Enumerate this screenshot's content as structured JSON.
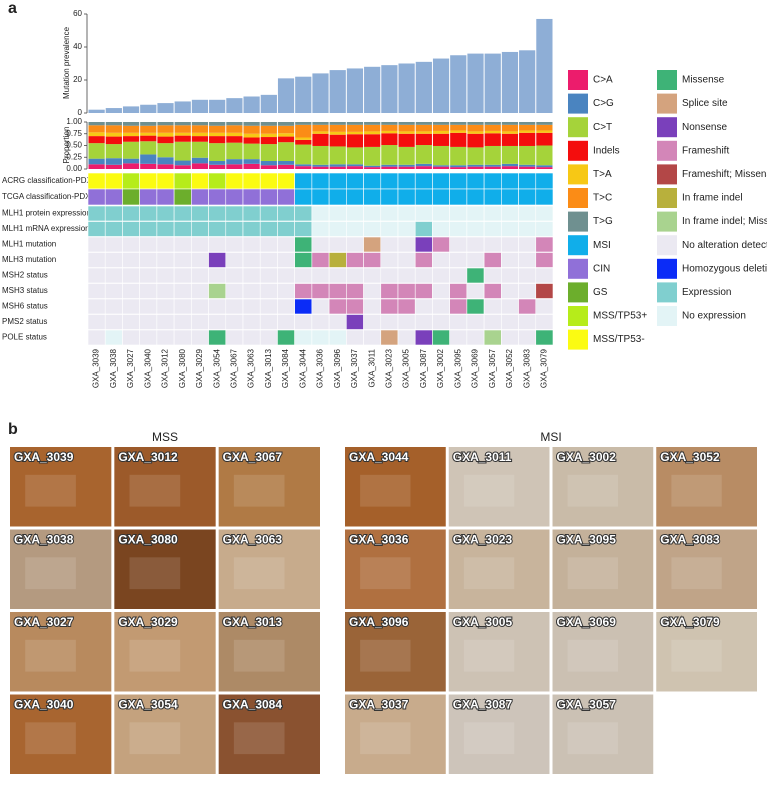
{
  "panel_a": {
    "label": "a"
  },
  "chart_data": [
    {
      "type": "bar",
      "ylabel": "Mutation prevalence",
      "color": "#8eaed6",
      "categories": [
        "GXA_3039",
        "GXA_3038",
        "GXA_3027",
        "GXA_3040",
        "GXA_3012",
        "GXA_3080",
        "GXA_3029",
        "GXA_3054",
        "GXA_3067",
        "GXA_3063",
        "GXA_3013",
        "GXA_3084",
        "GXA_3044",
        "GXA_3036",
        "GXA_3096",
        "GXA_3037",
        "GXA_3011",
        "GXA_3023",
        "GXA_3005",
        "GXA_3087",
        "GXA_3002",
        "GXA_3095",
        "GXA_3069",
        "GXA_3057",
        "GXA_3052",
        "GXA_3083",
        "GXA_3079"
      ],
      "values": [
        2,
        3,
        4,
        5,
        6,
        7,
        8,
        8,
        9,
        10,
        11,
        21,
        22,
        24,
        26,
        27,
        28,
        29,
        30,
        31,
        33,
        35,
        36,
        36,
        37,
        38,
        57
      ],
      "ylim": [
        0,
        60
      ],
      "yticks": [
        0,
        20,
        40,
        60
      ]
    },
    {
      "type": "stacked_bar",
      "ylabel": "Proportion",
      "ylim": [
        0,
        1
      ],
      "yticks": [
        {
          "value": 0,
          "label": "0.00"
        },
        {
          "value": 0.25,
          "label": "0.25"
        },
        {
          "value": 0.5,
          "label": "0.50"
        },
        {
          "value": 0.75,
          "label": "0.75"
        },
        {
          "value": 1,
          "label": "1.00"
        }
      ],
      "series": [
        {
          "name": "C>A",
          "color": "#ec1c6c",
          "values": [
            0.1,
            0.09,
            0.12,
            0.11,
            0.1,
            0.08,
            0.12,
            0.09,
            0.1,
            0.11,
            0.08,
            0.09,
            0.06,
            0.05,
            0.05,
            0.06,
            0.04,
            0.05,
            0.05,
            0.06,
            0.05,
            0.04,
            0.05,
            0.05,
            0.06,
            0.05,
            0.04
          ]
        },
        {
          "name": "C>G",
          "color": "#4a84c0",
          "values": [
            0.12,
            0.14,
            0.1,
            0.2,
            0.15,
            0.1,
            0.12,
            0.08,
            0.11,
            0.1,
            0.09,
            0.08,
            0.04,
            0.04,
            0.05,
            0.04,
            0.03,
            0.04,
            0.04,
            0.05,
            0.03,
            0.04,
            0.04,
            0.04,
            0.05,
            0.04,
            0.04
          ]
        },
        {
          "name": "C>T",
          "color": "#a5d33a",
          "values": [
            0.33,
            0.3,
            0.36,
            0.28,
            0.3,
            0.4,
            0.34,
            0.38,
            0.35,
            0.33,
            0.36,
            0.4,
            0.42,
            0.4,
            0.38,
            0.36,
            0.4,
            0.42,
            0.38,
            0.4,
            0.41,
            0.39,
            0.37,
            0.4,
            0.38,
            0.4,
            0.42
          ]
        },
        {
          "name": "Indels",
          "color": "#f40d0d",
          "values": [
            0.15,
            0.16,
            0.12,
            0.12,
            0.14,
            0.13,
            0.12,
            0.15,
            0.14,
            0.13,
            0.15,
            0.12,
            0.1,
            0.26,
            0.25,
            0.28,
            0.27,
            0.25,
            0.28,
            0.24,
            0.26,
            0.3,
            0.29,
            0.27,
            0.26,
            0.28,
            0.27
          ]
        },
        {
          "name": "T>A",
          "color": "#f7c815",
          "values": [
            0.08,
            0.08,
            0.07,
            0.06,
            0.08,
            0.06,
            0.07,
            0.07,
            0.07,
            0.08,
            0.07,
            0.07,
            0.05,
            0.05,
            0.06,
            0.05,
            0.06,
            0.05,
            0.05,
            0.05,
            0.06,
            0.05,
            0.05,
            0.05,
            0.05,
            0.05,
            0.05
          ]
        },
        {
          "name": "T>C",
          "color": "#fb8c16",
          "values": [
            0.15,
            0.16,
            0.15,
            0.15,
            0.16,
            0.16,
            0.16,
            0.15,
            0.16,
            0.17,
            0.17,
            0.16,
            0.27,
            0.14,
            0.15,
            0.15,
            0.14,
            0.13,
            0.14,
            0.14,
            0.13,
            0.12,
            0.14,
            0.13,
            0.14,
            0.12,
            0.12
          ]
        },
        {
          "name": "T>G",
          "color": "#6f9090",
          "values": [
            0.07,
            0.07,
            0.08,
            0.08,
            0.07,
            0.07,
            0.07,
            0.08,
            0.07,
            0.08,
            0.08,
            0.08,
            0.06,
            0.06,
            0.06,
            0.06,
            0.06,
            0.06,
            0.06,
            0.06,
            0.06,
            0.06,
            0.06,
            0.06,
            0.06,
            0.06,
            0.06
          ]
        }
      ]
    }
  ],
  "heatmap": {
    "legend": [
      {
        "label": "MSI",
        "color": "#10aeea"
      },
      {
        "label": "CIN",
        "color": "#9070d8"
      },
      {
        "label": "GS",
        "color": "#6cae2c"
      },
      {
        "label": "MSS/TP53+",
        "color": "#b6ec1a"
      },
      {
        "label": "MSS/TP53-",
        "color": "#fbfb12"
      },
      {
        "label": "Missense",
        "color": "#3eb377"
      },
      {
        "label": "Splice site",
        "color": "#d4a37e"
      },
      {
        "label": "Nonsense",
        "color": "#7a40bb"
      },
      {
        "label": "Frameshift",
        "color": "#d386b8"
      },
      {
        "label": "Frameshift; Missense",
        "color": "#b34747"
      },
      {
        "label": "In frame indel",
        "color": "#b8b03c"
      },
      {
        "label": "In frame indel; Missense",
        "color": "#a9d38f"
      },
      {
        "label": "No alteration detected",
        "color": "#ebe9f2"
      },
      {
        "label": "Homozygous deletion",
        "color": "#0b2cf7"
      },
      {
        "label": "Expression",
        "color": "#80cfcf"
      },
      {
        "label": "No expression",
        "color": "#e3f4f6"
      }
    ],
    "rows": [
      {
        "label": "ACRG classification-PDX",
        "values": [
          4,
          4,
          3,
          4,
          4,
          3,
          4,
          3,
          4,
          4,
          4,
          4,
          0,
          0,
          0,
          0,
          0,
          0,
          0,
          0,
          0,
          0,
          0,
          0,
          0,
          0,
          0
        ]
      },
      {
        "label": "TCGA classification-PDX",
        "values": [
          1,
          1,
          2,
          1,
          1,
          2,
          1,
          1,
          1,
          1,
          1,
          1,
          0,
          0,
          0,
          0,
          0,
          0,
          0,
          0,
          0,
          0,
          0,
          0,
          0,
          0,
          0
        ]
      },
      {
        "label": "MLH1 protein expression",
        "values": [
          14,
          14,
          14,
          14,
          14,
          14,
          14,
          14,
          14,
          14,
          14,
          14,
          14,
          15,
          15,
          15,
          15,
          15,
          15,
          15,
          15,
          15,
          15,
          15,
          15,
          15,
          15
        ]
      },
      {
        "label": "MLH1 mRNA expression",
        "values": [
          14,
          14,
          14,
          14,
          14,
          14,
          14,
          14,
          14,
          14,
          14,
          14,
          14,
          15,
          15,
          15,
          15,
          15,
          15,
          14,
          15,
          15,
          15,
          15,
          15,
          15,
          15
        ]
      },
      {
        "label": "MLH1 mutation",
        "values": [
          12,
          12,
          12,
          12,
          12,
          12,
          12,
          12,
          12,
          12,
          12,
          12,
          5,
          12,
          12,
          12,
          6,
          12,
          12,
          7,
          8,
          12,
          12,
          12,
          12,
          12,
          8
        ]
      },
      {
        "label": "MLH3 mutation",
        "values": [
          12,
          12,
          12,
          12,
          12,
          12,
          12,
          7,
          12,
          12,
          12,
          12,
          5,
          8,
          10,
          8,
          8,
          12,
          12,
          8,
          12,
          12,
          12,
          8,
          12,
          12,
          8
        ]
      },
      {
        "label": "MSH2 status",
        "values": [
          12,
          12,
          12,
          12,
          12,
          12,
          12,
          12,
          12,
          12,
          12,
          12,
          12,
          12,
          12,
          12,
          12,
          12,
          12,
          12,
          12,
          12,
          5,
          12,
          12,
          12,
          12
        ]
      },
      {
        "label": "MSH3 status",
        "values": [
          12,
          12,
          12,
          12,
          12,
          12,
          12,
          11,
          12,
          12,
          12,
          12,
          8,
          8,
          8,
          8,
          12,
          8,
          8,
          8,
          12,
          8,
          12,
          8,
          12,
          12,
          9
        ]
      },
      {
        "label": "MSH6 status",
        "values": [
          12,
          12,
          12,
          12,
          12,
          12,
          12,
          12,
          12,
          12,
          12,
          12,
          13,
          12,
          8,
          8,
          12,
          8,
          8,
          12,
          12,
          8,
          5,
          12,
          12,
          8,
          12
        ]
      },
      {
        "label": "PMS2 status",
        "values": [
          12,
          12,
          12,
          12,
          12,
          12,
          12,
          12,
          12,
          12,
          12,
          12,
          12,
          12,
          12,
          7,
          12,
          12,
          12,
          12,
          12,
          12,
          12,
          12,
          12,
          12,
          12
        ]
      },
      {
        "label": "POLE status",
        "values": [
          12,
          15,
          12,
          12,
          12,
          12,
          12,
          5,
          12,
          12,
          12,
          5,
          15,
          15,
          15,
          12,
          12,
          6,
          12,
          7,
          5,
          12,
          12,
          11,
          12,
          12,
          5
        ]
      }
    ]
  },
  "panel_b": {
    "label": "b",
    "groups": [
      {
        "title": "MSS",
        "tiles": [
          {
            "label": "GXA_3039",
            "color": "#a8642e"
          },
          {
            "label": "GXA_3012",
            "color": "#9c5a2a"
          },
          {
            "label": "GXA_3067",
            "color": "#b07a45"
          },
          {
            "label": "GXA_3038",
            "color": "#b49a80"
          },
          {
            "label": "GXA_3080",
            "color": "#7a4520"
          },
          {
            "label": "GXA_3063",
            "color": "#c7ab8c"
          },
          {
            "label": "GXA_3027",
            "color": "#b88a5e"
          },
          {
            "label": "GXA_3029",
            "color": "#c29a72"
          },
          {
            "label": "GXA_3013",
            "color": "#ad8a66"
          },
          {
            "label": "GXA_3040",
            "color": "#a86530"
          },
          {
            "label": "GXA_3054",
            "color": "#c4a27e"
          },
          {
            "label": "GXA_3084",
            "color": "#8a5230"
          }
        ]
      },
      {
        "title": "MSI",
        "tiles": [
          {
            "label": "GXA_3044",
            "color": "#a5602a"
          },
          {
            "label": "GXA_3011",
            "color": "#cfc4b6"
          },
          {
            "label": "GXA_3002",
            "color": "#c9bba8"
          },
          {
            "label": "GXA_3052",
            "color": "#b88c64"
          },
          {
            "label": "GXA_3036",
            "color": "#b07040"
          },
          {
            "label": "GXA_3023",
            "color": "#c8b49c"
          },
          {
            "label": "GXA_3095",
            "color": "#c4b19a"
          },
          {
            "label": "GXA_3083",
            "color": "#c0a488"
          },
          {
            "label": "GXA_3096",
            "color": "#9a6438"
          },
          {
            "label": "GXA_3005",
            "color": "#cdc2b4"
          },
          {
            "label": "GXA_3069",
            "color": "#cbc0b2"
          },
          {
            "label": "GXA_3079",
            "color": "#cfc3b0"
          },
          {
            "label": "GXA_3037",
            "color": "#c8ab8c"
          },
          {
            "label": "GXA_3087",
            "color": "#cdc4ba"
          },
          {
            "label": "GXA_3057",
            "color": "#cbc1b4"
          }
        ]
      }
    ]
  }
}
